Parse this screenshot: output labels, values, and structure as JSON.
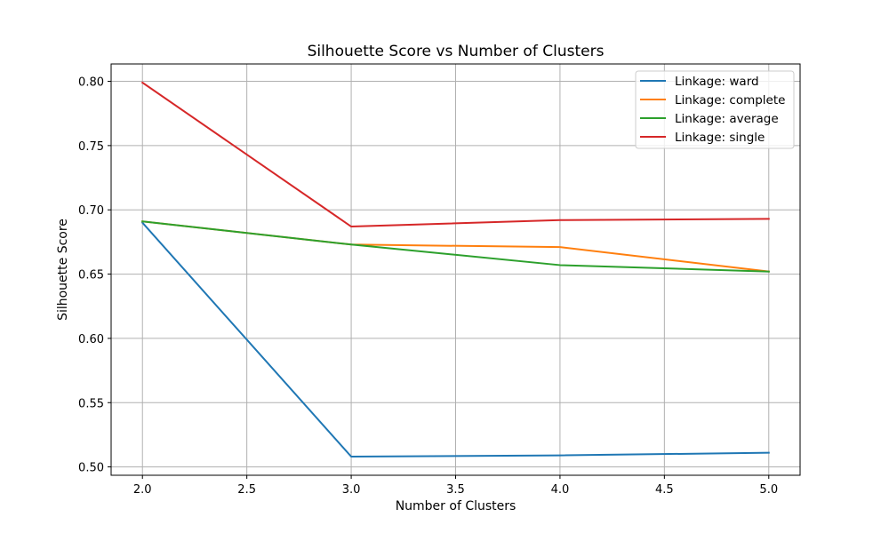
{
  "chart_data": {
    "type": "line",
    "title": "Silhouette Score vs Number of Clusters",
    "xlabel": "Number of Clusters",
    "ylabel": "Silhouette Score",
    "x": [
      2,
      3,
      4,
      5
    ],
    "xlim": [
      1.85,
      5.15
    ],
    "ylim": [
      0.4935,
      0.8135
    ],
    "xticks": [
      2.0,
      2.5,
      3.0,
      3.5,
      4.0,
      4.5,
      5.0
    ],
    "xtick_labels": [
      "2.0",
      "2.5",
      "3.0",
      "3.5",
      "4.0",
      "4.5",
      "5.0"
    ],
    "yticks": [
      0.5,
      0.55,
      0.6,
      0.65,
      0.7,
      0.75,
      0.8
    ],
    "ytick_labels": [
      "0.50",
      "0.55",
      "0.60",
      "0.65",
      "0.70",
      "0.75",
      "0.80"
    ],
    "grid": true,
    "legend_position": "top-right",
    "series": [
      {
        "name": "Linkage: ward",
        "color": "#1f77b4",
        "values": [
          0.69,
          0.508,
          0.509,
          0.511
        ]
      },
      {
        "name": "Linkage: complete",
        "color": "#ff7f0e",
        "values": [
          0.691,
          0.673,
          0.671,
          0.652
        ]
      },
      {
        "name": "Linkage: average",
        "color": "#2ca02c",
        "values": [
          0.691,
          0.673,
          0.657,
          0.652
        ]
      },
      {
        "name": "Linkage: single",
        "color": "#d62728",
        "values": [
          0.799,
          0.687,
          0.692,
          0.693
        ]
      }
    ]
  }
}
